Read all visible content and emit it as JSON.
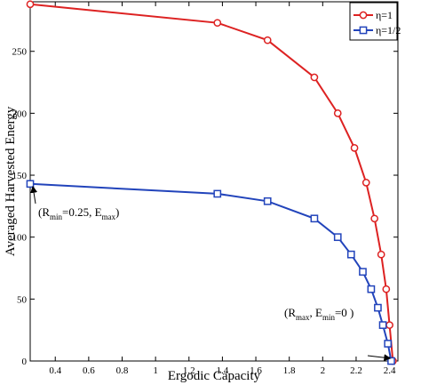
{
  "chart_data": {
    "type": "line",
    "xlabel": "Ergodic Capacity",
    "ylabel": "Averaged Harvested Energy",
    "xlim": [
      0.25,
      2.45
    ],
    "ylim": [
      0,
      290
    ],
    "xticks": [
      0.4,
      0.6,
      0.8,
      1,
      1.2,
      1.4,
      1.6,
      1.8,
      2,
      2.2,
      2.4
    ],
    "yticks": [
      0,
      50,
      100,
      150,
      200,
      250
    ],
    "grid": false,
    "legend_position": "top-right",
    "series": [
      {
        "name": "η=1",
        "color": "#dd2222",
        "marker": "circle",
        "x": [
          0.25,
          1.37,
          1.67,
          1.95,
          2.09,
          2.19,
          2.26,
          2.31,
          2.35,
          2.38,
          2.4,
          2.42
        ],
        "y": [
          288,
          273,
          259,
          229,
          200,
          172,
          144,
          115,
          86,
          58,
          29,
          0
        ]
      },
      {
        "name": "η=1/2",
        "color": "#2244bb",
        "marker": "square",
        "x": [
          0.25,
          1.37,
          1.67,
          1.95,
          2.09,
          2.17,
          2.24,
          2.29,
          2.33,
          2.36,
          2.39,
          2.41
        ],
        "y": [
          143,
          135,
          129,
          115,
          100,
          86,
          72,
          58,
          43,
          29,
          14,
          0
        ]
      }
    ],
    "annotations": [
      {
        "parts": [
          [
            "(R",
            ""
          ],
          [
            "min",
            "sub"
          ],
          [
            "=0.25, E",
            ""
          ],
          [
            "max",
            "sub"
          ],
          [
            ")",
            ""
          ]
        ],
        "point": [
          0.25,
          143
        ]
      },
      {
        "parts": [
          [
            "(R",
            ""
          ],
          [
            "max",
            "sub"
          ],
          [
            ", E",
            ""
          ],
          [
            "min",
            "sub"
          ],
          [
            "=0 )",
            ""
          ]
        ],
        "point": [
          2.42,
          0
        ]
      }
    ]
  }
}
